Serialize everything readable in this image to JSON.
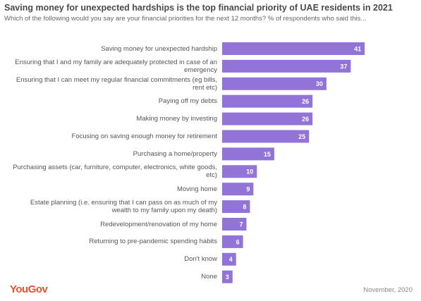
{
  "chart_data": {
    "type": "bar",
    "orientation": "horizontal",
    "title": "Saving money for unexpected hardships is the top financial priority of UAE residents in 2021",
    "subtitle": "Which of the following would you say are your financial priorities for the next 12 months? % of respondents who said this...",
    "categories": [
      "Saving money for unexpected hardship",
      "Ensuring that I and my family are adequately protected in case of an emergency",
      "Ensuring that I can meet my regular financial commitments (eg bills, rent etc)",
      "Paying off my debts",
      "Making money by investing",
      "Focusing on saving enough money for retirement",
      "Purchasing a home/property",
      "Purchasing assets (car, furniture, computer, electronics, white goods, etc)",
      "Moving  home",
      "Estate planning (i.e. ensuring that I can pass on as much of my wealth to my family upon my death)",
      "Redevelopment/renovation of my  home",
      "Returning to pre-pandemic spending habits",
      "Don't know",
      "None"
    ],
    "values": [
      41,
      37,
      30,
      26,
      26,
      25,
      15,
      10,
      9,
      8,
      7,
      6,
      4,
      3
    ],
    "color": "#9274d8",
    "source": "YouGov",
    "date": "November, 2020"
  }
}
